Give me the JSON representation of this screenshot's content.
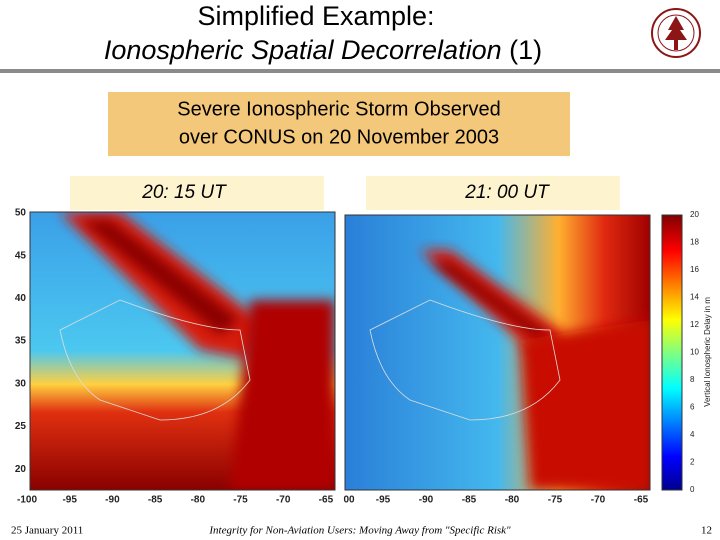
{
  "header": {
    "line1": "Simplified Example:",
    "line2_italic": "Ionospheric Spatial Decorrelation",
    "line2_suffix": " (1)"
  },
  "callout": {
    "line1": "Severe Ionospheric Storm Observed",
    "line2": "over CONUS on 20 November 2003"
  },
  "panels": [
    {
      "label": "20: 15 UT",
      "yticks": [
        "50",
        "45",
        "40",
        "35",
        "30",
        "25",
        "20"
      ],
      "xticks": [
        "-100",
        "-95",
        "-90",
        "-85",
        "-80",
        "-75",
        "-70",
        "-65"
      ]
    },
    {
      "label": "21: 00 UT",
      "xticks": [
        "00",
        "-95",
        "-90",
        "-85",
        "-80",
        "-75",
        "-70",
        "-65"
      ]
    }
  ],
  "colorbar": {
    "ticks": [
      "20",
      "18",
      "16",
      "14",
      "12",
      "10",
      "8",
      "6",
      "4",
      "2",
      "0"
    ],
    "label": "Vertical Ionospheric Delay in m"
  },
  "footer": {
    "date": "25 January 2011",
    "center": "Integrity for Non-Aviation Users: Moving Away from \"Specific Risk\"",
    "page": "12"
  }
}
